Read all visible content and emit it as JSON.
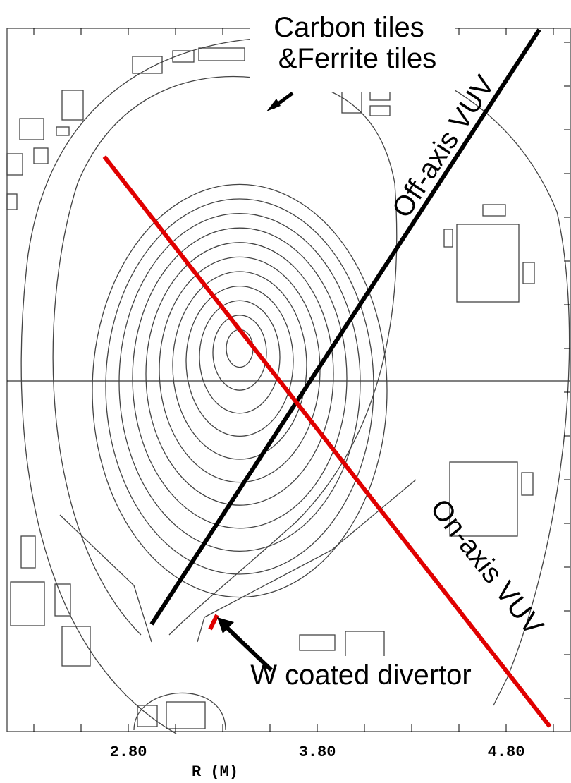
{
  "axis": {
    "label": "R (M)",
    "ticks": [
      "2.80",
      "3.80",
      "4.80"
    ]
  },
  "annotations": {
    "carbon": [
      "Carbon tiles",
      "&Ferrite tiles"
    ],
    "off_axis": "Off-axis VUV",
    "on_axis": "On-axis VUV",
    "divertor": "W coated divertor"
  }
}
